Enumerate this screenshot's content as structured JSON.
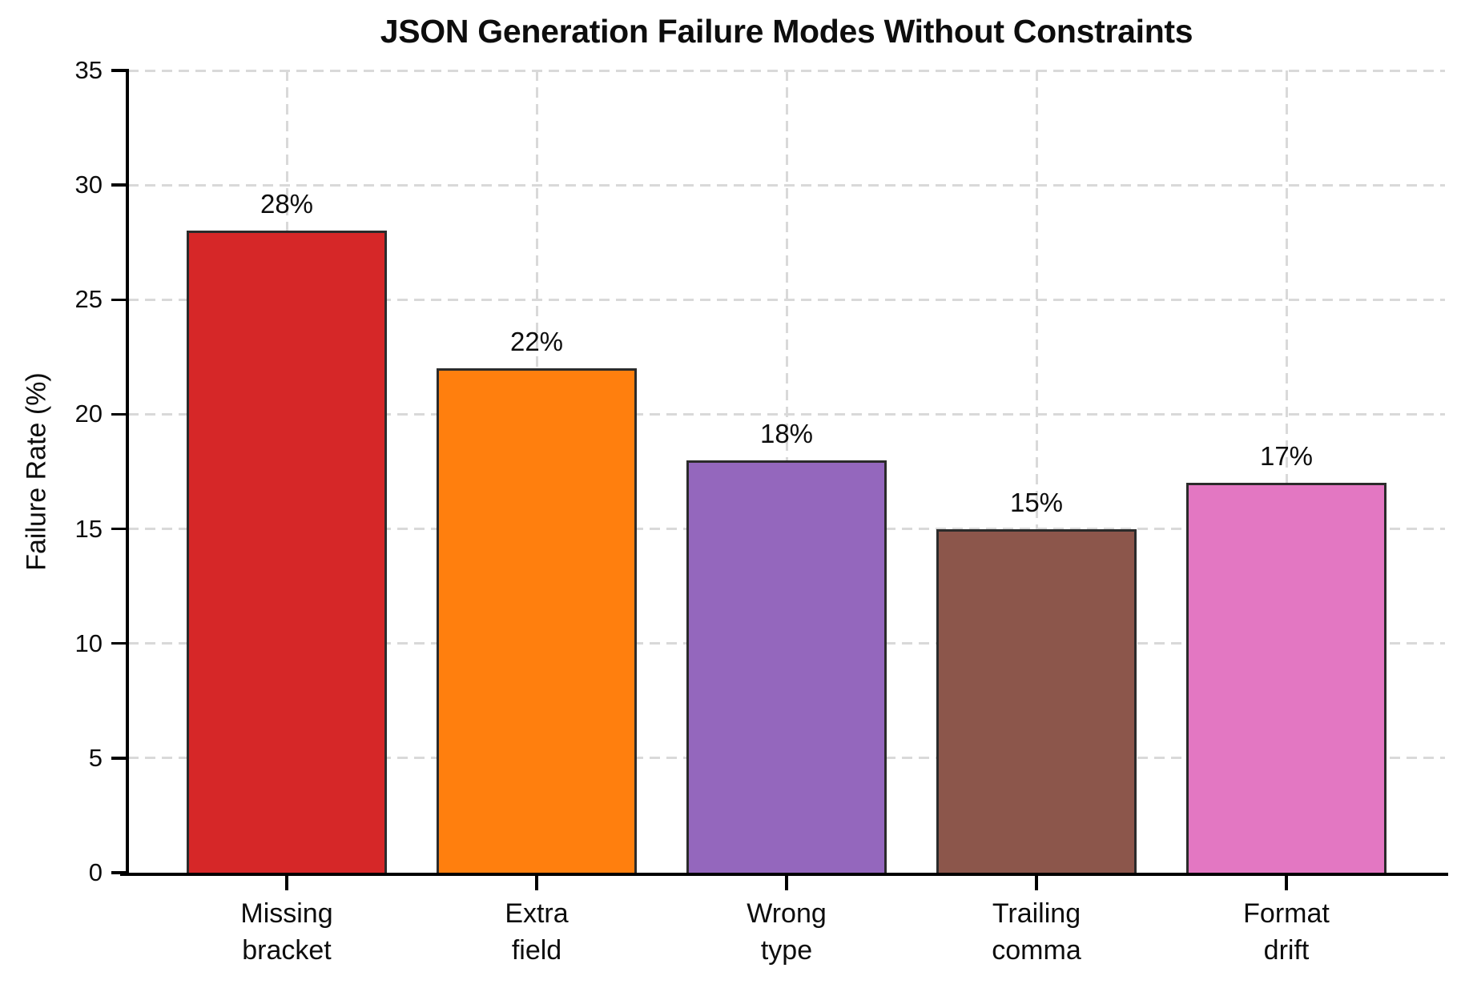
{
  "title": "JSON Generation Failure Modes Without Constraints",
  "chart_data": {
    "type": "bar",
    "title": "JSON Generation Failure Modes Without Constraints",
    "xlabel": "",
    "ylabel": "Failure Rate (%)",
    "categories": [
      "Missing\nbracket",
      "Extra\nfield",
      "Wrong\ntype",
      "Trailing\ncomma",
      "Format\ndrift"
    ],
    "values": [
      28,
      22,
      18,
      15,
      17
    ],
    "bar_labels": [
      "28%",
      "22%",
      "18%",
      "15%",
      "17%"
    ],
    "bar_colors": [
      "#d62728",
      "#ff7f0e",
      "#9467bd",
      "#8c564b",
      "#e377c2"
    ],
    "bar_edge_color": "#2b2b2b",
    "ylim": [
      0,
      35
    ],
    "yticks": [
      0,
      5,
      10,
      15,
      20,
      25,
      30,
      35
    ],
    "grid": "dashed horizontal and vertical, light gray, drawn below bars",
    "legend": "none"
  }
}
